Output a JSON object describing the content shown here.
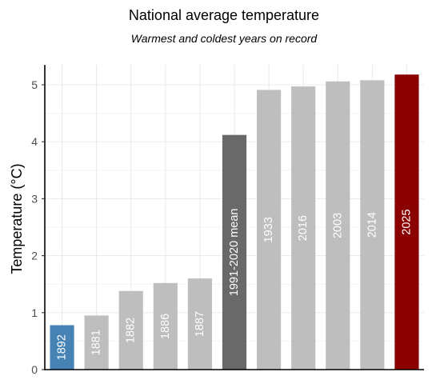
{
  "chart_data": {
    "type": "bar",
    "title": "National average temperature",
    "subtitle": "Warmest and coldest years on record",
    "xlabel": "",
    "ylabel": "Temperature (°C)",
    "ylim": [
      0,
      5.35
    ],
    "yticks": [
      "0",
      "1",
      "2",
      "3",
      "4",
      "5"
    ],
    "grid": true,
    "categories": [
      "1892",
      "1881",
      "1882",
      "1886",
      "1887",
      "1991-2020 mean",
      "1933",
      "2016",
      "2003",
      "2014",
      "2025"
    ],
    "values": [
      0.78,
      0.95,
      1.38,
      1.52,
      1.6,
      4.12,
      4.91,
      4.97,
      5.06,
      5.08,
      5.18
    ],
    "colors": [
      "#4682b4",
      "#bebebe",
      "#bebebe",
      "#bebebe",
      "#bebebe",
      "#696969",
      "#bebebe",
      "#bebebe",
      "#bebebe",
      "#bebebe",
      "#8b0000"
    ],
    "gridColor": "#ebebeb",
    "textColor": "#4d4d4d"
  }
}
